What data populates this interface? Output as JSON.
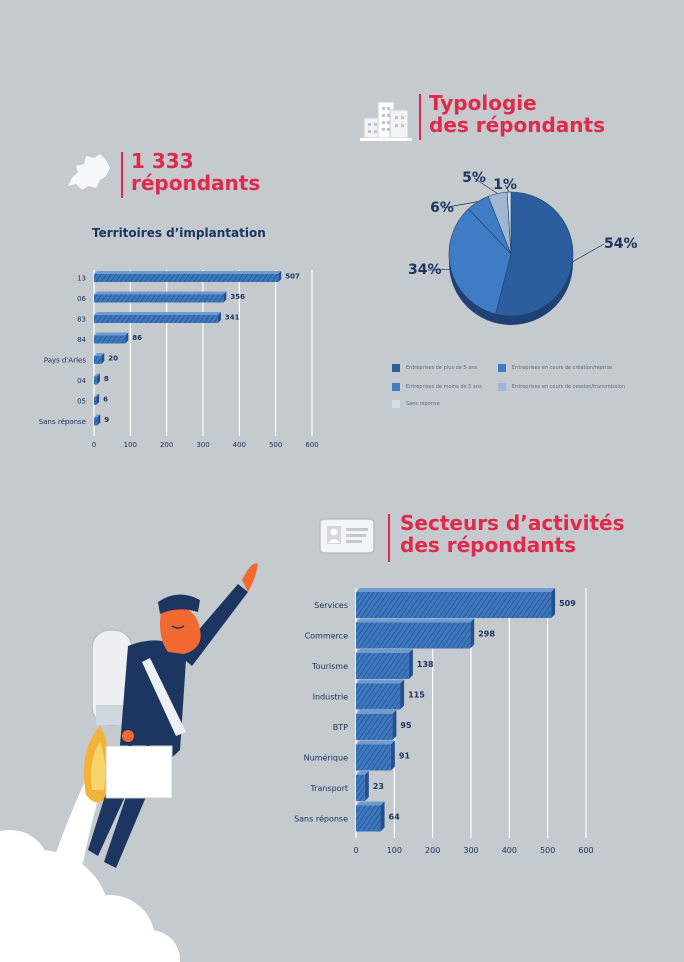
{
  "colors": {
    "background": "#c4cacd",
    "title_red": "#e0294b",
    "navy": "#1c3561",
    "bar_blue": "#3d78bf",
    "bar_dark": "#24508f",
    "slice_dark": "#2c5d9f",
    "slice_mid": "#3f7cc4",
    "slice_light": "#9fb7d2",
    "slice_pale": "#d2dde8"
  },
  "icons": {
    "map": "region-map-icon",
    "buildings": "buildings-icon",
    "id_card": "id-card-icon",
    "mascot": "jetpack-businessman-illustration"
  },
  "respondents": {
    "title_line1": "1 333",
    "title_line2": "répondants"
  },
  "typology": {
    "title_line1": "Typologie",
    "title_line2": "des répondants"
  },
  "sectors": {
    "title_line1": "Secteurs d’activités",
    "title_line2": "des répondants"
  },
  "chart_data": [
    {
      "type": "bar",
      "orientation": "horizontal",
      "title": "Territoires d’implantation",
      "categories": [
        "13",
        "06",
        "83",
        "84",
        "Pays d'Arles",
        "04",
        "05",
        "Sans réponse"
      ],
      "values": [
        507,
        356,
        341,
        86,
        20,
        8,
        6,
        9
      ],
      "xlim": [
        0,
        600
      ],
      "xticks": [
        0,
        100,
        200,
        300,
        400,
        500,
        600
      ],
      "grid": true
    },
    {
      "type": "pie",
      "title": "",
      "labels": [
        "Entreprises de plus de 5 ans",
        "Entreprises de moins de 5 ans",
        "Entreprises en cours de création/reprise",
        "Entreprises en cours de cession/transmission",
        "Sans réponse"
      ],
      "values": [
        54,
        34,
        6,
        5,
        1
      ],
      "value_labels": [
        "54%",
        "34%",
        "6%",
        "5%",
        "1%"
      ],
      "legend_position": "bottom"
    },
    {
      "type": "bar",
      "orientation": "horizontal",
      "title": "",
      "categories": [
        "Services",
        "Commerce",
        "Tourisme",
        "Industrie",
        "BTP",
        "Numérique",
        "Transport",
        "Sans réponse"
      ],
      "values": [
        509,
        298,
        138,
        115,
        95,
        91,
        23,
        64
      ],
      "xlim": [
        0,
        600
      ],
      "xticks": [
        0,
        100,
        200,
        300,
        400,
        500,
        600
      ],
      "grid": true
    }
  ]
}
